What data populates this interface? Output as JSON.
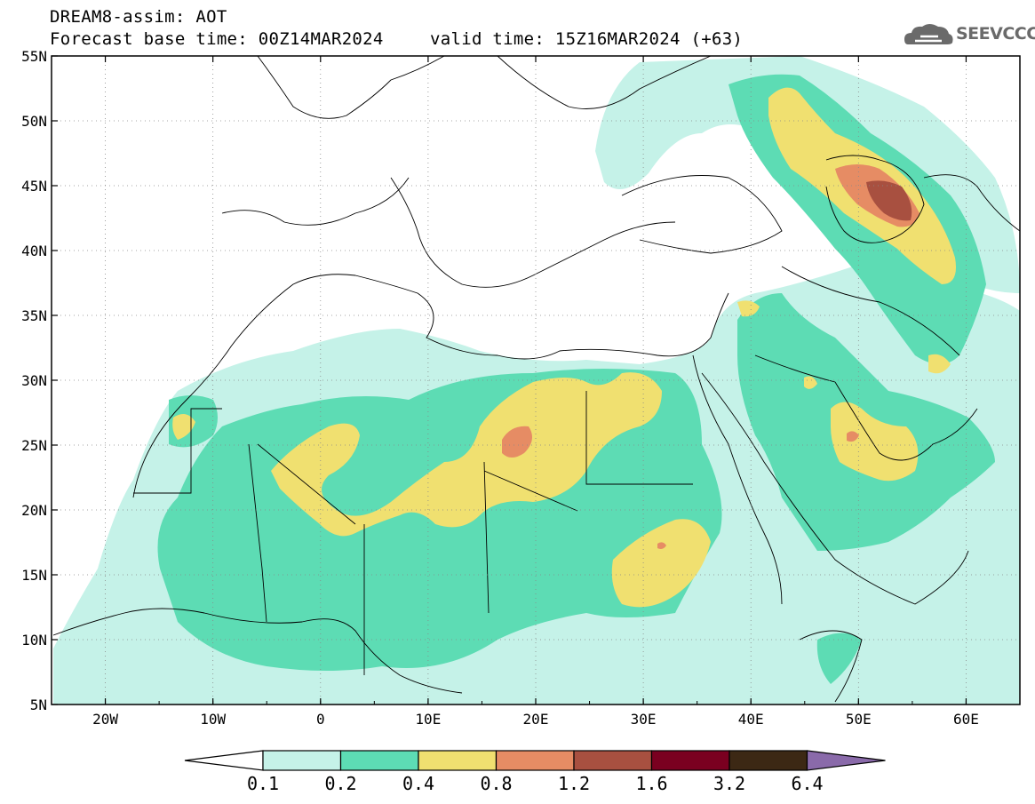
{
  "header": {
    "line1": "DREAM8-assim: AOT",
    "line2": "Forecast base time: 00Z14MAR2024",
    "valid": "valid time: 15Z16MAR2024 (+63)"
  },
  "logo": {
    "text": "SEEVCCC",
    "icon": "cloud-icon"
  },
  "map": {
    "lat_labels": [
      "55N",
      "50N",
      "45N",
      "40N",
      "35N",
      "30N",
      "25N",
      "20N",
      "15N",
      "10N",
      "5N"
    ],
    "lon_labels": [
      "20W",
      "10W",
      "0",
      "10E",
      "20E",
      "30E",
      "40E",
      "50E",
      "60E"
    ],
    "extent": {
      "lon_min": -25,
      "lon_max": 65,
      "lat_min": 5,
      "lat_max": 55
    }
  },
  "colorbar": {
    "labels": [
      "0.1",
      "0.2",
      "0.4",
      "0.8",
      "1.2",
      "1.6",
      "3.2",
      "6.4"
    ],
    "colors": [
      "#c5f2e8",
      "#5ddcb4",
      "#f0e070",
      "#e68c64",
      "#a85040",
      "#7a0020",
      "#3c2814",
      "#8a6aaa"
    ]
  }
}
